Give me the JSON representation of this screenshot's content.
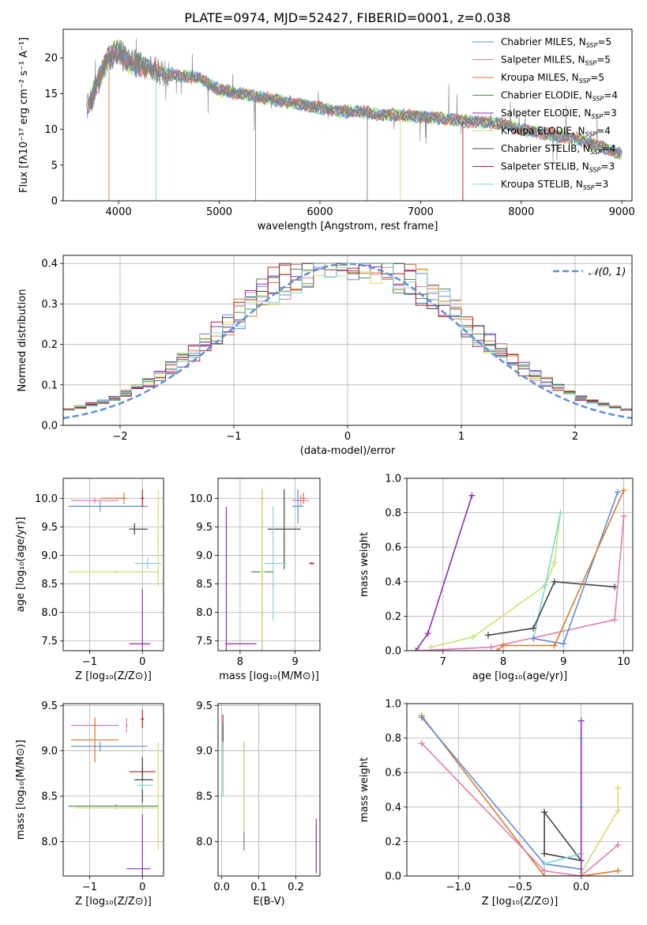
{
  "figure_title": "PLATE=0974, MJD=52427, FIBERID=0001, z=0.038",
  "colors": {
    "chabrier_miles": "#5b8fd9",
    "salpeter_miles": "#e07bb4",
    "kroupa_miles": "#d97a2b",
    "chabrier_elodie": "#5a8a5a",
    "salpeter_elodie": "#8e2fae",
    "kroupa_elodie": "#c7e56b",
    "chabrier_stelib": "#444444",
    "salpeter_stelib": "#b22222",
    "kroupa_stelib": "#7fd6d6",
    "data": "#808080",
    "gaussian": "#5b8fd9"
  },
  "chart_data": [
    {
      "id": "spectrum",
      "type": "line",
      "title": "PLATE=0974, MJD=52427, FIBERID=0001, z=0.038",
      "xlabel": "wavelength [Angstrom, rest frame]",
      "ylabel": "Flux [fλ10⁻¹⁷ erg cm⁻² s⁻¹ A⁻¹]",
      "xlim": [
        3450,
        9100
      ],
      "ylim": [
        0,
        24
      ],
      "xticks": [
        4000,
        5000,
        6000,
        7000,
        8000,
        9000
      ],
      "yticks": [
        0,
        5,
        10,
        15,
        20
      ],
      "legend_position": "top-right",
      "legend": [
        {
          "name": "Chabrier MILES",
          "n": "5",
          "color": "#5b8fd9"
        },
        {
          "name": "Salpeter MILES",
          "n": "5",
          "color": "#e07bb4"
        },
        {
          "name": "Kroupa MILES",
          "n": "5",
          "color": "#d97a2b"
        },
        {
          "name": "Chabrier ELODIE",
          "n": "4",
          "color": "#5a8a5a"
        },
        {
          "name": "Salpeter ELODIE",
          "n": "3",
          "color": "#8e2fae"
        },
        {
          "name": "Kroupa ELODIE",
          "n": "4",
          "color": "#c7e56b"
        },
        {
          "name": "Chabrier STELIB",
          "n": "4",
          "color": "#444444"
        },
        {
          "name": "Salpeter STELIB",
          "n": "3",
          "color": "#b22222"
        },
        {
          "name": "Kroupa STELIB",
          "n": "3",
          "color": "#7fd6d6"
        }
      ],
      "series": [
        {
          "name": "data",
          "x": [
            3680,
            3800,
            3900,
            4000,
            4100,
            4200,
            4400,
            4600,
            4800,
            5000,
            5200,
            5400,
            5600,
            5800,
            6000,
            6200,
            6400,
            6600,
            6800,
            7000,
            7200,
            7400,
            7600,
            7800,
            8000,
            8200,
            8400,
            8600,
            8800,
            9000
          ],
          "y": [
            12.5,
            17,
            20,
            21,
            19.5,
            19,
            18,
            17.5,
            17.2,
            15.5,
            15,
            14.5,
            14,
            13.5,
            13,
            12.5,
            12.5,
            12,
            12,
            11.8,
            11.5,
            11.2,
            11,
            10.8,
            10,
            9.5,
            9,
            8.5,
            7.5,
            6.5
          ]
        }
      ]
    },
    {
      "id": "residuals",
      "type": "line",
      "xlabel": "(data-model)/error",
      "ylabel": "Normed distribution",
      "xlim": [
        -2.5,
        2.5
      ],
      "ylim": [
        0,
        0.42
      ],
      "xticks": [
        -2,
        -1,
        0,
        1,
        2
      ],
      "yticks": [
        0.0,
        0.1,
        0.2,
        0.3,
        0.4
      ],
      "grid": true,
      "legend_position": "top-right",
      "legend": [
        {
          "name": "𝒩(0, 1)",
          "color": "#5b8fd9",
          "style": "dashed"
        }
      ]
    },
    {
      "id": "age_vs_Z",
      "type": "scatter",
      "xlabel": "Z [log₁₀(Z/Z⊙)]",
      "ylabel": "age  [log₁₀(age/yr)]",
      "xlim": [
        -1.5,
        0.4
      ],
      "ylim": [
        7.33,
        10.35
      ],
      "xticks": [
        -1,
        0
      ],
      "yticks": [
        7.5,
        8.0,
        8.5,
        9.0,
        9.5,
        10.0
      ],
      "grid": true,
      "points": [
        {
          "x": -0.35,
          "y": 10.0,
          "xerr": [
            0.45,
            0.05
          ],
          "yerr": 0.1,
          "color": "#d97a2b"
        },
        {
          "x": -0.9,
          "y": 9.96,
          "xerr": [
            0.45,
            0.45
          ],
          "yerr": 0.05,
          "color": "#e07bb4"
        },
        {
          "x": -0.8,
          "y": 9.86,
          "xerr": [
            0.6,
            0.9
          ],
          "yerr": 0.1,
          "color": "#5b8fd9"
        },
        {
          "x": 0.0,
          "y": 10.0,
          "xerr": [
            0.03,
            0.03
          ],
          "yerr": 0.15,
          "color": "#b22222"
        },
        {
          "x": -0.15,
          "y": 9.46,
          "xerr": [
            0.1,
            0.25
          ],
          "yerr": 0.1,
          "color": "#444444"
        },
        {
          "x": 0.1,
          "y": 8.86,
          "xerr": [
            0.25,
            0.25
          ],
          "yerr": 0.1,
          "color": "#7fd6d6"
        },
        {
          "x": -0.5,
          "y": 8.71,
          "xerr": [
            0.9,
            0.8
          ],
          "yerr": 0.02,
          "color": "#c7e56b"
        },
        {
          "x": 0.3,
          "y": 9.3,
          "xerr": [
            0.02,
            0.02
          ],
          "yerr": 0.85,
          "color": "#c7e56b"
        },
        {
          "x": 0.0,
          "y": 7.45,
          "xerr": [
            0.25,
            0.15
          ],
          "yerr": 0.95,
          "color": "#8e2fae"
        }
      ]
    },
    {
      "id": "age_vs_mass",
      "type": "scatter",
      "xlabel": "mass [log₁₀(M/M⊙)]",
      "xlim": [
        7.6,
        9.45
      ],
      "ylim": [
        7.33,
        10.35
      ],
      "xticks": [
        8,
        9
      ],
      "yticks": [
        7.5,
        8.0,
        8.5,
        9.0,
        9.5,
        10.0
      ],
      "grid": true,
      "points": [
        {
          "x": 9.1,
          "y": 9.96,
          "xerr": [
            0.15,
            0.15
          ],
          "yerr": 0.1,
          "color": "#e07bb4"
        },
        {
          "x": 9.05,
          "y": 9.86,
          "xerr": [
            0.1,
            0.1
          ],
          "yerr": 0.3,
          "color": "#5b8fd9"
        },
        {
          "x": 9.15,
          "y": 10.0,
          "xerr": [
            0.05,
            0.05
          ],
          "yerr": 0.1,
          "color": "#d97a2b"
        },
        {
          "x": 8.8,
          "y": 9.46,
          "xerr": [
            0.3,
            0.3
          ],
          "yerr": 0.7,
          "color": "#444444"
        },
        {
          "x": 8.6,
          "y": 8.86,
          "xerr": [
            0.15,
            0.25
          ],
          "yerr": 1.0,
          "color": "#7fd6d6"
        },
        {
          "x": 8.4,
          "y": 8.71,
          "xerr": [
            0.2,
            0.2
          ],
          "yerr": 1.45,
          "color": "#5a8a5a"
        },
        {
          "x": 8.4,
          "y": 8.71,
          "xerr": [
            0.05,
            0.05
          ],
          "yerr": 1.45,
          "color": "#c7e56b"
        },
        {
          "x": 9.3,
          "y": 8.86,
          "xerr": [
            0.05,
            0.05
          ],
          "yerr": 0.02,
          "color": "#b22222"
        },
        {
          "x": 7.75,
          "y": 7.45,
          "xerr": [
            0.02,
            0.55
          ],
          "yerr": 2.4,
          "color": "#8e2fae"
        }
      ]
    },
    {
      "id": "mass_weight_vs_age",
      "type": "line",
      "xlabel": "age  [log₁₀(age/yr)]",
      "ylabel": "mass weight",
      "xlim": [
        6.4,
        10.15
      ],
      "ylim": [
        0,
        1.0
      ],
      "xticks": [
        7,
        8,
        9,
        10
      ],
      "yticks": [
        0.0,
        0.2,
        0.4,
        0.6,
        0.8,
        1.0
      ],
      "grid": true,
      "series": [
        {
          "color": "#8e2fae",
          "x": [
            6.55,
            6.75,
            7.48
          ],
          "y": [
            0.0,
            0.1,
            0.9
          ]
        },
        {
          "color": "#c7e56b",
          "x": [
            6.8,
            7.5,
            8.7,
            8.85,
            8.95
          ],
          "y": [
            0.02,
            0.08,
            0.38,
            0.51,
            0.8
          ]
        },
        {
          "color": "#7fd6d6",
          "x": [
            8.5,
            8.7,
            8.95
          ],
          "y": [
            0.07,
            0.38,
            0.8
          ]
        },
        {
          "color": "#444444",
          "x": [
            7.75,
            8.5,
            8.85,
            9.85
          ],
          "y": [
            0.09,
            0.13,
            0.4,
            0.37
          ]
        },
        {
          "color": "#e07bb4",
          "x": [
            6.6,
            7.8,
            9.85,
            10.0
          ],
          "y": [
            0.0,
            0.02,
            0.18,
            0.78
          ]
        },
        {
          "color": "#5b8fd9",
          "x": [
            8.5,
            9.0,
            9.9
          ],
          "y": [
            0.07,
            0.04,
            0.92
          ]
        },
        {
          "color": "#d97a2b",
          "x": [
            7.9,
            8.0,
            8.85,
            10.0
          ],
          "y": [
            0.0,
            0.03,
            0.03,
            0.93
          ]
        }
      ]
    },
    {
      "id": "mass_vs_Z",
      "type": "scatter",
      "xlabel": "Z [log₁₀(Z/Z⊙)]",
      "ylabel": "mass [log₁₀(M/M⊙)]",
      "xlim": [
        -1.5,
        0.4
      ],
      "ylim": [
        7.62,
        9.52
      ],
      "xticks": [
        -1,
        0
      ],
      "yticks": [
        8.0,
        8.5,
        9.0,
        9.5
      ],
      "grid": true,
      "points": [
        {
          "x": -0.9,
          "y": 9.28,
          "xerr": [
            0.45,
            0.45
          ],
          "yerr": 0.08,
          "color": "#e07bb4"
        },
        {
          "x": -0.3,
          "y": 9.28,
          "xerr": [
            0.02,
            0.02
          ],
          "yerr": 0.08,
          "color": "#e07bb4"
        },
        {
          "x": -0.9,
          "y": 9.12,
          "xerr": [
            0.45,
            0.45
          ],
          "yerr": 0.25,
          "color": "#d97a2b"
        },
        {
          "x": -0.8,
          "y": 9.05,
          "xerr": [
            0.55,
            0.9
          ],
          "yerr": 0.05,
          "color": "#5b8fd9"
        },
        {
          "x": 0.0,
          "y": 9.35,
          "xerr": [
            0.03,
            0.03
          ],
          "yerr": 0.1,
          "color": "#b22222"
        },
        {
          "x": 0.0,
          "y": 8.77,
          "xerr": [
            0.25,
            0.25
          ],
          "yerr": 0.05,
          "color": "#b22222"
        },
        {
          "x": 0.0,
          "y": 8.68,
          "xerr": [
            0.15,
            0.2
          ],
          "yerr": 0.25,
          "color": "#444444"
        },
        {
          "x": 0.0,
          "y": 8.62,
          "xerr": [
            0.1,
            0.2
          ],
          "yerr": 0.05,
          "color": "#7fd6d6"
        },
        {
          "x": -0.5,
          "y": 8.39,
          "xerr": [
            0.9,
            0.8
          ],
          "yerr": 0.02,
          "color": "#5a8a5a"
        },
        {
          "x": -0.5,
          "y": 8.37,
          "xerr": [
            0.8,
            0.8
          ],
          "yerr": 0.02,
          "color": "#c7e56b"
        },
        {
          "x": 0.3,
          "y": 8.5,
          "xerr": [
            0.02,
            0.02
          ],
          "yerr": 0.6,
          "color": "#c7e56b"
        },
        {
          "x": 0.0,
          "y": 7.7,
          "xerr": [
            0.3,
            0.15
          ],
          "yerr": 0.6,
          "color": "#8e2fae"
        }
      ]
    },
    {
      "id": "mass_vs_ebv",
      "type": "scatter",
      "xlabel": "E(B-V)",
      "xlim": [
        -0.01,
        0.265
      ],
      "ylim": [
        7.62,
        9.52
      ],
      "xticks": [
        0.0,
        0.1,
        0.2
      ],
      "yticks": [
        8.0,
        8.5,
        9.0,
        9.5
      ],
      "grid": true,
      "points": [
        {
          "x": 0.003,
          "y": 9.2,
          "xerr": [
            0,
            0
          ],
          "yerr": 0.2,
          "color": "#b22222"
        },
        {
          "x": 0.003,
          "y": 8.9,
          "xerr": [
            0,
            0
          ],
          "yerr": 0.4,
          "color": "#444444"
        },
        {
          "x": 0.003,
          "y": 8.8,
          "xerr": [
            0,
            0
          ],
          "yerr": 0.3,
          "color": "#7fd6d6"
        },
        {
          "x": 0.06,
          "y": 8.5,
          "xerr": [
            0,
            0
          ],
          "yerr": 0.6,
          "color": "#5a8a5a"
        },
        {
          "x": 0.06,
          "y": 8.6,
          "xerr": [
            0,
            0
          ],
          "yerr": 0.5,
          "color": "#c7e56b"
        },
        {
          "x": 0.255,
          "y": 7.95,
          "xerr": [
            0,
            0
          ],
          "yerr": 0.3,
          "color": "#8e2fae"
        }
      ]
    },
    {
      "id": "mass_weight_vs_Z",
      "type": "line",
      "xlabel": "Z [log₁₀(Z/Z⊙)]",
      "ylabel": "mass weight",
      "xlim": [
        -1.42,
        0.42
      ],
      "ylim": [
        0,
        1.0
      ],
      "xticks": [
        -1.0,
        -0.5,
        0.0
      ],
      "yticks": [
        0.0,
        0.2,
        0.4,
        0.6,
        0.8,
        1.0
      ],
      "grid": true,
      "series": [
        {
          "color": "#d97a2b",
          "x": [
            -1.3,
            -0.3,
            0.0,
            0.3
          ],
          "y": [
            0.93,
            0.0,
            0.0,
            0.03
          ]
        },
        {
          "color": "#e07bb4",
          "x": [
            -1.3,
            -0.3,
            0.0,
            0.3
          ],
          "y": [
            0.77,
            0.03,
            0.0,
            0.18
          ]
        },
        {
          "color": "#5b8fd9",
          "x": [
            -1.3,
            -0.3,
            0.0
          ],
          "y": [
            0.92,
            0.07,
            0.04
          ]
        },
        {
          "color": "#444444",
          "x": [
            -0.3,
            -0.3,
            0.0,
            -0.3
          ],
          "y": [
            0.37,
            0.13,
            0.09,
            0.37
          ]
        },
        {
          "color": "#7fd6d6",
          "x": [
            -0.3,
            0.0,
            0.0,
            0.0
          ],
          "y": [
            0.07,
            0.13,
            0.4,
            0.8
          ]
        },
        {
          "color": "#c7e56b",
          "x": [
            0.0,
            0.3,
            0.3,
            0.3
          ],
          "y": [
            0.02,
            0.38,
            0.51,
            0.51
          ]
        },
        {
          "color": "#8e2fae",
          "x": [
            0.0,
            0.0
          ],
          "y": [
            0.0,
            0.9
          ]
        }
      ]
    }
  ]
}
